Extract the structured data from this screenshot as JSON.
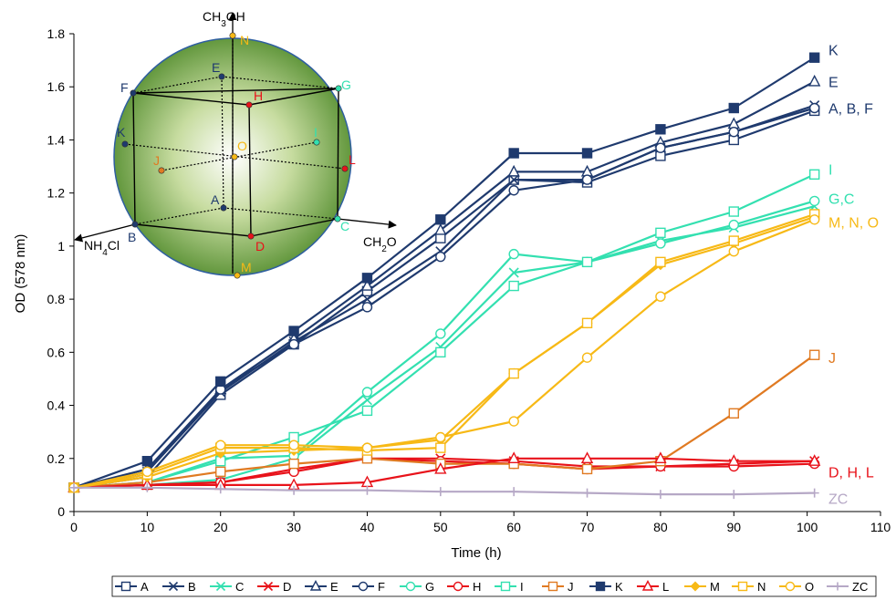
{
  "chart_data": {
    "type": "line",
    "xlabel": "Time (h)",
    "ylabel": "OD (578 nm)",
    "xlim": [
      0,
      110
    ],
    "ylim": [
      0,
      1.8
    ],
    "x_ticks": [
      "0",
      "10",
      "20",
      "30",
      "40",
      "50",
      "60",
      "70",
      "80",
      "90",
      "100",
      "110"
    ],
    "y_ticks": [
      "0",
      "0.2",
      "0.4",
      "0.6",
      "0.8",
      "1",
      "1.2",
      "1.4",
      "1.6",
      "1.8"
    ],
    "grid": false,
    "legend_position": "bottom",
    "series": [
      {
        "name": "A",
        "color": "#1f3a6e",
        "marker": "square-open",
        "x": [
          0,
          10,
          20,
          30,
          40,
          50,
          60,
          70,
          80,
          90,
          101
        ],
        "y": [
          0.09,
          0.13,
          0.44,
          0.63,
          0.83,
          1.03,
          1.25,
          1.24,
          1.34,
          1.4,
          1.51
        ]
      },
      {
        "name": "B",
        "color": "#1f3a6e",
        "marker": "x",
        "x": [
          0,
          10,
          20,
          30,
          40,
          50,
          60,
          70,
          80,
          90,
          101
        ],
        "y": [
          0.09,
          0.15,
          0.45,
          0.64,
          0.8,
          0.98,
          1.25,
          1.25,
          1.37,
          1.43,
          1.53
        ]
      },
      {
        "name": "C",
        "color": "#33e0b0",
        "marker": "x",
        "x": [
          0,
          10,
          20,
          30,
          40,
          50,
          60,
          70,
          80,
          90,
          101
        ],
        "y": [
          0.09,
          0.1,
          0.12,
          0.2,
          0.42,
          0.62,
          0.9,
          0.94,
          1.02,
          1.07,
          1.15
        ]
      },
      {
        "name": "D",
        "color": "#e8121a",
        "marker": "x",
        "x": [
          0,
          10,
          20,
          30,
          40,
          50,
          60,
          70,
          80,
          90,
          101
        ],
        "y": [
          0.09,
          0.1,
          0.11,
          0.16,
          0.2,
          0.2,
          0.19,
          0.17,
          0.17,
          0.18,
          0.19
        ]
      },
      {
        "name": "E",
        "color": "#1f3a6e",
        "marker": "triangle-open",
        "x": [
          0,
          10,
          20,
          30,
          40,
          50,
          60,
          70,
          80,
          90,
          101
        ],
        "y": [
          0.09,
          0.16,
          0.46,
          0.65,
          0.85,
          1.06,
          1.28,
          1.28,
          1.39,
          1.46,
          1.62
        ]
      },
      {
        "name": "F",
        "color": "#1f3a6e",
        "marker": "circle-open",
        "x": [
          0,
          10,
          20,
          30,
          40,
          50,
          60,
          70,
          80,
          90,
          101
        ],
        "y": [
          0.09,
          0.15,
          0.46,
          0.63,
          0.77,
          0.96,
          1.21,
          1.25,
          1.37,
          1.43,
          1.52
        ]
      },
      {
        "name": "G",
        "color": "#33e0b0",
        "marker": "circle-open",
        "x": [
          0,
          10,
          20,
          30,
          40,
          50,
          60,
          70,
          80,
          90,
          101
        ],
        "y": [
          0.09,
          0.11,
          0.2,
          0.21,
          0.45,
          0.67,
          0.97,
          0.94,
          1.01,
          1.08,
          1.17
        ]
      },
      {
        "name": "H",
        "color": "#e8121a",
        "marker": "circle-open",
        "x": [
          0,
          10,
          20,
          30,
          40,
          50,
          60,
          70,
          80,
          90,
          101
        ],
        "y": [
          0.09,
          0.1,
          0.11,
          0.15,
          0.2,
          0.19,
          0.18,
          0.16,
          0.17,
          0.17,
          0.18
        ]
      },
      {
        "name": "I",
        "color": "#33e0b0",
        "marker": "square-open",
        "x": [
          0,
          10,
          20,
          30,
          40,
          50,
          60,
          70,
          80,
          90,
          101
        ],
        "y": [
          0.09,
          0.11,
          0.19,
          0.28,
          0.38,
          0.6,
          0.85,
          0.94,
          1.05,
          1.13,
          1.27
        ]
      },
      {
        "name": "J",
        "color": "#e07a22",
        "marker": "square-open",
        "x": [
          0,
          10,
          20,
          30,
          40,
          50,
          60,
          70,
          80,
          90,
          101
        ],
        "y": [
          0.09,
          0.11,
          0.15,
          0.18,
          0.2,
          0.18,
          0.18,
          0.16,
          0.19,
          0.37,
          0.59
        ]
      },
      {
        "name": "K",
        "color": "#1f3a6e",
        "marker": "square-filled",
        "x": [
          0,
          10,
          20,
          30,
          40,
          50,
          60,
          70,
          80,
          90,
          101
        ],
        "y": [
          0.09,
          0.19,
          0.49,
          0.68,
          0.88,
          1.1,
          1.35,
          1.35,
          1.44,
          1.52,
          1.71
        ]
      },
      {
        "name": "L",
        "color": "#e8121a",
        "marker": "triangle-open",
        "x": [
          0,
          10,
          20,
          30,
          40,
          50,
          60,
          70,
          80,
          90,
          101
        ],
        "y": [
          0.09,
          0.1,
          0.1,
          0.1,
          0.11,
          0.16,
          0.2,
          0.2,
          0.2,
          0.19,
          0.19
        ]
      },
      {
        "name": "M",
        "color": "#f7b916",
        "marker": "diamond-filled",
        "x": [
          0,
          10,
          20,
          30,
          40,
          50,
          60,
          70,
          80,
          90,
          101
        ],
        "y": [
          0.09,
          0.13,
          0.22,
          0.23,
          0.24,
          0.27,
          0.52,
          0.71,
          0.93,
          1.01,
          1.11
        ]
      },
      {
        "name": "N",
        "color": "#f7b916",
        "marker": "square-open",
        "x": [
          0,
          10,
          20,
          30,
          40,
          50,
          60,
          70,
          80,
          90,
          101
        ],
        "y": [
          0.09,
          0.14,
          0.24,
          0.24,
          0.23,
          0.24,
          0.52,
          0.71,
          0.94,
          1.02,
          1.12
        ]
      },
      {
        "name": "O",
        "color": "#f7b916",
        "marker": "circle-open",
        "x": [
          0,
          10,
          20,
          30,
          40,
          50,
          60,
          70,
          80,
          90,
          101
        ],
        "y": [
          0.09,
          0.15,
          0.25,
          0.25,
          0.24,
          0.28,
          0.34,
          0.58,
          0.81,
          0.98,
          1.1
        ]
      },
      {
        "name": "ZC",
        "color": "#b6a8c6",
        "marker": "plus",
        "x": [
          0,
          10,
          20,
          30,
          40,
          50,
          60,
          70,
          80,
          90,
          101
        ],
        "y": [
          0.09,
          0.09,
          0.085,
          0.08,
          0.08,
          0.075,
          0.075,
          0.07,
          0.065,
          0.065,
          0.07
        ]
      }
    ],
    "end_labels": [
      {
        "text": "K",
        "color": "#1f3a6e",
        "y": 1.74
      },
      {
        "text": "E",
        "color": "#1f3a6e",
        "y": 1.62
      },
      {
        "text": "A, B, F",
        "color": "#1f3a6e",
        "y": 1.52
      },
      {
        "text": "I",
        "color": "#33e0b0",
        "y": 1.29
      },
      {
        "text": "G,C",
        "color": "#33e0b0",
        "y": 1.18
      },
      {
        "text": "M, N, O",
        "color": "#f7b916",
        "y": 1.09
      },
      {
        "text": "J",
        "color": "#e07a22",
        "y": 0.58
      },
      {
        "text": "D, H, L",
        "color": "#e8121a",
        "y": 0.15
      },
      {
        "text": "ZC",
        "color": "#b6a8c6",
        "y": 0.05
      }
    ],
    "inset": {
      "axis_top": "CH3OH",
      "axis_left": "NH4Cl",
      "axis_right": "CH2O",
      "points": [
        {
          "label": "N",
          "color": "#f7b916"
        },
        {
          "label": "E",
          "color": "#1f3a6e"
        },
        {
          "label": "F",
          "color": "#1f3a6e"
        },
        {
          "label": "G",
          "color": "#33e0b0"
        },
        {
          "label": "H",
          "color": "#e8121a"
        },
        {
          "label": "I",
          "color": "#33e0b0"
        },
        {
          "label": "K",
          "color": "#1f3a6e"
        },
        {
          "label": "O",
          "color": "#f7b916"
        },
        {
          "label": "L",
          "color": "#e8121a"
        },
        {
          "label": "J",
          "color": "#e07a22"
        },
        {
          "label": "A",
          "color": "#1f3a6e"
        },
        {
          "label": "B",
          "color": "#1f3a6e"
        },
        {
          "label": "C",
          "color": "#33e0b0"
        },
        {
          "label": "D",
          "color": "#e8121a"
        },
        {
          "label": "M",
          "color": "#f7b916"
        }
      ]
    }
  }
}
